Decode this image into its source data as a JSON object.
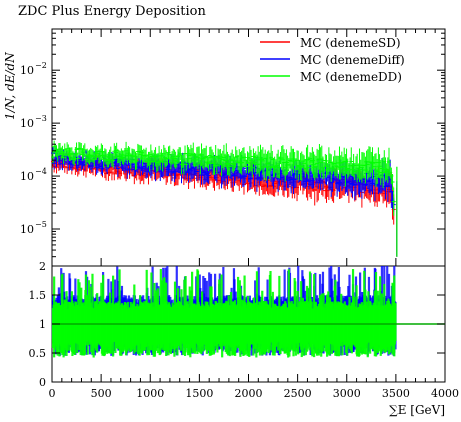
{
  "chart_data": [
    {
      "type": "line",
      "title": "ZDC Plus Energy Deposition",
      "ylabel": "1/N, dE/dN",
      "ylog": true,
      "xlim": [
        0,
        4000
      ],
      "ylim": [
        2e-06,
        0.06
      ],
      "ytick_labels": [
        "10",
        "10",
        "10",
        "10"
      ],
      "ytick_exponents": [
        "−5",
        "−4",
        "−3",
        "−2"
      ],
      "ytick_values": [
        1e-05,
        0.0001,
        0.001,
        0.01
      ],
      "legend": "top-right",
      "series": [
        {
          "name": "MC (denemeSD)",
          "color": "#ff0000",
          "x": [
            0,
            250,
            500,
            750,
            1000,
            1250,
            1500,
            1750,
            2000,
            2250,
            2500,
            2750,
            3000,
            3250,
            3450,
            3530
          ],
          "y": [
            0.00019,
            0.00017,
            0.00015,
            0.00014,
            0.00013,
            0.00012,
            0.00011,
            0.0001,
            9e-05,
            8e-05,
            8e-05,
            7e-05,
            7e-05,
            6e-05,
            6e-05,
            3e-06
          ]
        },
        {
          "name": "MC (denemeDiff)",
          "color": "#0000ff",
          "x": [
            0,
            250,
            500,
            750,
            1000,
            1250,
            1500,
            1750,
            2000,
            2250,
            2500,
            2750,
            3000,
            3250,
            3450,
            3530
          ],
          "y": [
            0.00022,
            0.0002,
            0.00018,
            0.00017,
            0.00016,
            0.00015,
            0.00014,
            0.00013,
            0.00012,
            0.00011,
            0.0001,
            0.0001,
            9e-05,
            9e-05,
            8e-05,
            3e-06
          ]
        },
        {
          "name": "MC (denemeDD)",
          "color": "#00ff00",
          "x": [
            0,
            250,
            500,
            750,
            1000,
            1250,
            1500,
            1750,
            2000,
            2250,
            2500,
            2750,
            3000,
            3250,
            3450,
            3530
          ],
          "y": [
            0.0003,
            0.00027,
            0.00025,
            0.00024,
            0.00023,
            0.00022,
            0.00021,
            0.0002,
            0.00019,
            0.00018,
            0.00018,
            0.00017,
            0.00016,
            0.00016,
            0.00015,
            3e-06
          ]
        }
      ]
    },
    {
      "type": "line",
      "xlabel": "∑E [GeV]",
      "xlim": [
        0,
        4000
      ],
      "ylim": [
        0,
        2
      ],
      "xticks": [
        0,
        500,
        1000,
        1500,
        2000,
        2500,
        3000,
        3500,
        4000
      ],
      "yticks": [
        0,
        0.5,
        1,
        1.5,
        2
      ],
      "ytick_labels": [
        "0",
        "0.5",
        "1",
        "1.5",
        "2"
      ],
      "reference_line": 1,
      "series": [
        {
          "name": "MC (denemeDiff)",
          "color": "#0000ff",
          "band": [
            0.75,
            1.35
          ]
        },
        {
          "name": "MC (denemeDD)",
          "color": "#00ff00",
          "band": [
            0.72,
            1.25
          ]
        }
      ]
    }
  ]
}
